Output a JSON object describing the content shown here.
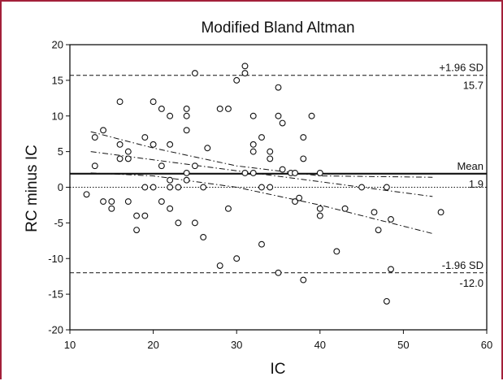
{
  "chart_data": {
    "type": "scatter",
    "title": "Modified Bland Altman",
    "xlabel": "IC",
    "ylabel": "RC minus IC",
    "xlim": [
      10,
      60
    ],
    "ylim": [
      -20,
      20
    ],
    "x_ticks": [
      10,
      20,
      30,
      40,
      50,
      60
    ],
    "y_ticks": [
      -20,
      -15,
      -10,
      -5,
      0,
      5,
      10,
      15,
      20
    ],
    "grid": false,
    "zero_line": 0,
    "reference_lines": [
      {
        "label": "+1.96 SD",
        "value_label": "15.7",
        "y": 15.7,
        "style": "dashed"
      },
      {
        "label": "Mean",
        "value_label": "1.9",
        "y": 1.9,
        "style": "solid"
      },
      {
        "label": "-1.96 SD",
        "value_label": "-12.0",
        "y": -12.0,
        "style": "dashed"
      }
    ],
    "regression": {
      "fit": {
        "x": [
          12.5,
          53.5
        ],
        "y": [
          5.0,
          -1.3
        ],
        "style": "dash-dot"
      },
      "upper_band": {
        "x": [
          12.5,
          20,
          30,
          40,
          53.5
        ],
        "y": [
          7.8,
          5.5,
          3.0,
          1.6,
          1.4
        ],
        "style": "dash-dot"
      },
      "lower_band": {
        "x": [
          12.5,
          20,
          30,
          40,
          53.5
        ],
        "y": [
          2.0,
          1.6,
          0.0,
          -2.5,
          -6.5
        ],
        "style": "dash-dot"
      }
    },
    "points": [
      {
        "x": 12,
        "y": -1
      },
      {
        "x": 13,
        "y": 7
      },
      {
        "x": 13,
        "y": 3
      },
      {
        "x": 14,
        "y": 8
      },
      {
        "x": 14,
        "y": -2
      },
      {
        "x": 15,
        "y": -2
      },
      {
        "x": 15,
        "y": -3
      },
      {
        "x": 16,
        "y": 12
      },
      {
        "x": 16,
        "y": 6
      },
      {
        "x": 16,
        "y": 4
      },
      {
        "x": 17,
        "y": 5
      },
      {
        "x": 17,
        "y": 4
      },
      {
        "x": 17,
        "y": -2
      },
      {
        "x": 18,
        "y": -4
      },
      {
        "x": 18,
        "y": -6
      },
      {
        "x": 19,
        "y": 7
      },
      {
        "x": 19,
        "y": 0
      },
      {
        "x": 19,
        "y": -4
      },
      {
        "x": 20,
        "y": 12
      },
      {
        "x": 20,
        "y": 6
      },
      {
        "x": 20,
        "y": 0
      },
      {
        "x": 21,
        "y": 11
      },
      {
        "x": 21,
        "y": 3
      },
      {
        "x": 21,
        "y": -2
      },
      {
        "x": 22,
        "y": 10
      },
      {
        "x": 22,
        "y": 6
      },
      {
        "x": 22,
        "y": 1
      },
      {
        "x": 22,
        "y": 0
      },
      {
        "x": 22,
        "y": -3
      },
      {
        "x": 23,
        "y": 0
      },
      {
        "x": 23,
        "y": -5
      },
      {
        "x": 24,
        "y": 11
      },
      {
        "x": 24,
        "y": 10
      },
      {
        "x": 24,
        "y": 8
      },
      {
        "x": 24,
        "y": 2
      },
      {
        "x": 24,
        "y": 1
      },
      {
        "x": 25,
        "y": 16
      },
      {
        "x": 25,
        "y": 3
      },
      {
        "x": 25,
        "y": -5
      },
      {
        "x": 26,
        "y": 0
      },
      {
        "x": 26,
        "y": -7
      },
      {
        "x": 26.5,
        "y": 5.5
      },
      {
        "x": 28,
        "y": 11
      },
      {
        "x": 28,
        "y": -11
      },
      {
        "x": 29,
        "y": 11
      },
      {
        "x": 29,
        "y": -3
      },
      {
        "x": 30,
        "y": 15
      },
      {
        "x": 30,
        "y": -10
      },
      {
        "x": 31,
        "y": 17
      },
      {
        "x": 31,
        "y": 16
      },
      {
        "x": 31,
        "y": 2
      },
      {
        "x": 32,
        "y": 10
      },
      {
        "x": 32,
        "y": 6
      },
      {
        "x": 32,
        "y": 5
      },
      {
        "x": 32,
        "y": 2
      },
      {
        "x": 33,
        "y": 7
      },
      {
        "x": 33,
        "y": 0
      },
      {
        "x": 33,
        "y": -8
      },
      {
        "x": 34,
        "y": 5
      },
      {
        "x": 34,
        "y": 4
      },
      {
        "x": 34,
        "y": 0
      },
      {
        "x": 35,
        "y": 14
      },
      {
        "x": 35,
        "y": 10
      },
      {
        "x": 35,
        "y": -12
      },
      {
        "x": 35.5,
        "y": 9
      },
      {
        "x": 35.5,
        "y": 2.5
      },
      {
        "x": 36.5,
        "y": 2
      },
      {
        "x": 37,
        "y": 2
      },
      {
        "x": 37,
        "y": -2
      },
      {
        "x": 37.5,
        "y": -1.5
      },
      {
        "x": 38,
        "y": 7
      },
      {
        "x": 38,
        "y": 4
      },
      {
        "x": 38,
        "y": -13
      },
      {
        "x": 39,
        "y": 10
      },
      {
        "x": 40,
        "y": 2
      },
      {
        "x": 40,
        "y": -3
      },
      {
        "x": 40,
        "y": -4
      },
      {
        "x": 42,
        "y": -9
      },
      {
        "x": 43,
        "y": -3
      },
      {
        "x": 45,
        "y": 0
      },
      {
        "x": 46.5,
        "y": -3.5
      },
      {
        "x": 47,
        "y": -6
      },
      {
        "x": 48,
        "y": 0
      },
      {
        "x": 48,
        "y": -16
      },
      {
        "x": 48.5,
        "y": -4.5
      },
      {
        "x": 48.5,
        "y": -11.5
      },
      {
        "x": 54.5,
        "y": -3.5
      }
    ]
  }
}
